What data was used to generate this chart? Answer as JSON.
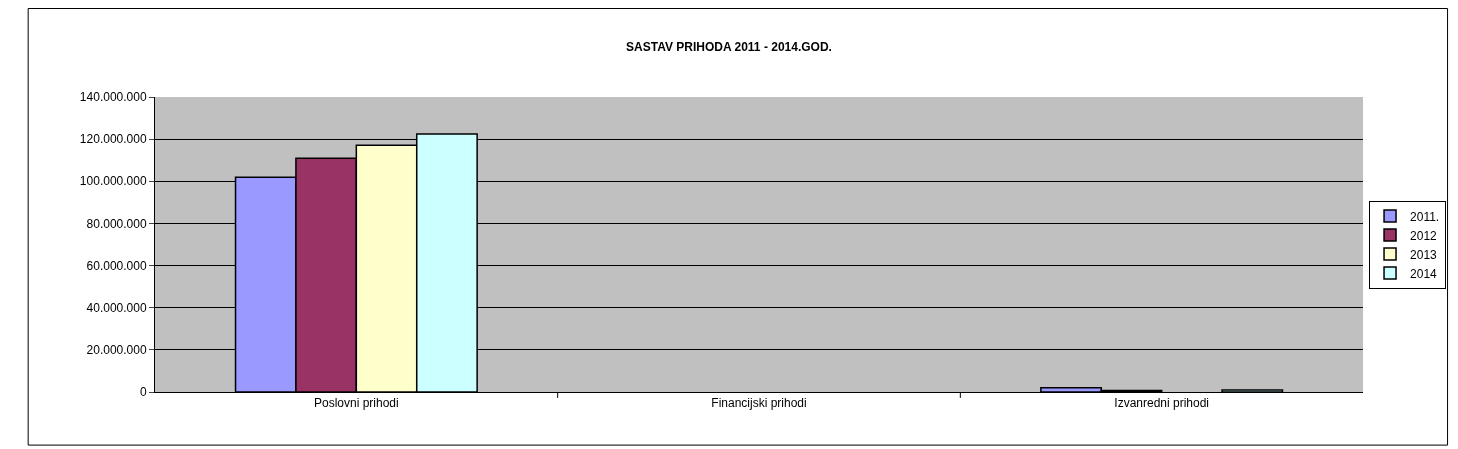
{
  "chart_data": {
    "type": "bar",
    "title": "SASTAV PRIHODA 2011 - 2014.GOD.",
    "categories": [
      "Poslovni prihodi",
      "Financijski prihodi",
      "Izvanredni prihodi"
    ],
    "series": [
      {
        "name": "2011.",
        "color": "#9999ff",
        "values": [
          101900000,
          null,
          2000000
        ]
      },
      {
        "name": "2012",
        "color": "#993366",
        "values": [
          110900000,
          null,
          700000
        ]
      },
      {
        "name": "2013",
        "color": "#ffffcc",
        "values": [
          117100000,
          null,
          null
        ]
      },
      {
        "name": "2014",
        "color": "#ccffff",
        "values": [
          122400000,
          null,
          900000
        ]
      }
    ],
    "ylim": [
      0,
      140000000
    ],
    "yticks": [
      {
        "value": 0,
        "label": "0"
      },
      {
        "value": 20000000,
        "label": "20.000.000"
      },
      {
        "value": 40000000,
        "label": "40.000.000"
      },
      {
        "value": 60000000,
        "label": "60.000.000"
      },
      {
        "value": 80000000,
        "label": "80.000.000"
      },
      {
        "value": 100000000,
        "label": "100.000.000"
      },
      {
        "value": 120000000,
        "label": "120.000.000"
      },
      {
        "value": 140000000,
        "label": "140.000.000"
      }
    ],
    "grid": "y",
    "legend": "right"
  }
}
